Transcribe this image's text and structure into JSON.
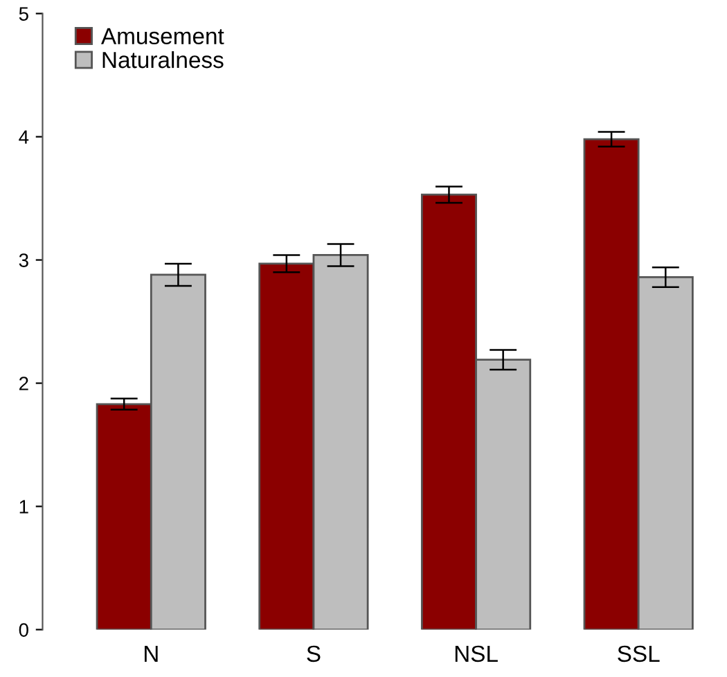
{
  "chart_data": {
    "type": "bar",
    "categories": [
      "N",
      "S",
      "NSL",
      "SSL"
    ],
    "series": [
      {
        "name": "Amusement",
        "color": "#8b0000",
        "values": [
          1.83,
          2.97,
          3.53,
          3.98
        ],
        "errors": [
          0.045,
          0.07,
          0.066,
          0.06
        ]
      },
      {
        "name": "Naturalness",
        "color": "#bebebe",
        "values": [
          2.88,
          3.04,
          2.19,
          2.86
        ],
        "errors": [
          0.09,
          0.09,
          0.08,
          0.08
        ]
      }
    ],
    "ylim": [
      0,
      5
    ],
    "yticks": [
      0,
      1,
      2,
      3,
      4,
      5
    ],
    "grid": false,
    "legend": "top left"
  }
}
